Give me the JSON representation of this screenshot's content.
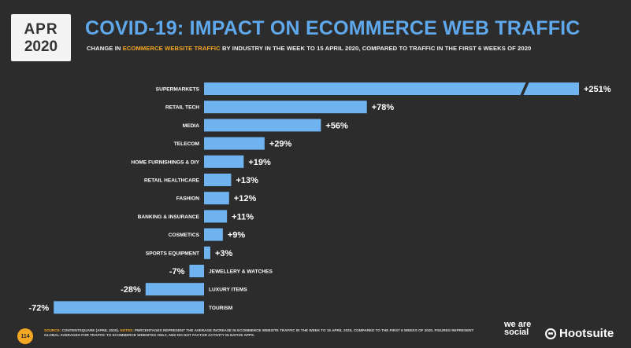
{
  "badge": {
    "month": "APR",
    "year": "2020"
  },
  "header": {
    "title": "COVID-19: IMPACT ON ECOMMERCE WEB TRAFFIC",
    "subtitle_pre": "CHANGE IN ",
    "subtitle_highlight": "ECOMMERCE WEBSITE TRAFFIC",
    "subtitle_post": " BY INDUSTRY IN THE WEEK TO 15 APRIL 2020, COMPARED TO TRAFFIC IN THE FIRST 6 WEEKS OF 2020"
  },
  "watermark": {
    "brand1": "we are social",
    "brand2": "Hootsuite"
  },
  "chart_data": {
    "type": "bar",
    "orientation": "horizontal",
    "categories": [
      "SUPERMARKETS",
      "RETAIL TECH",
      "MEDIA",
      "TELECOM",
      "HOME FURNISHINGS & DIY",
      "RETAIL HEALTHCARE",
      "FASHION",
      "BANKING & INSURANCE",
      "COSMETICS",
      "SPORTS EQUIPMENT",
      "JEWELLERY & WATCHES",
      "LUXURY ITEMS",
      "TOURISM"
    ],
    "values": [
      251,
      78,
      56,
      29,
      19,
      13,
      12,
      11,
      9,
      3,
      -7,
      -28,
      -72
    ],
    "value_labels": [
      "+251%",
      "+78%",
      "+56%",
      "+29%",
      "+19%",
      "+13%",
      "+12%",
      "+11%",
      "+9%",
      "+3%",
      "-7%",
      "-28%",
      "-72%"
    ],
    "axis_break": true,
    "colors": {
      "bar": "#6fb3f0",
      "label": "#ffffff",
      "highlight": "#f5a623"
    }
  },
  "footer": {
    "page_number": "114",
    "source_label": "SOURCE:",
    "source_text": " CONTENTSQUARE (APRIL 2020). ",
    "notes_label": "NOTES:",
    "notes_text": " PERCENTAGES REPRESENT THE AVERAGE INCREASE IN ECOMMERCE WEBSITE TRAFFIC IN THE WEEK TO 15 APRIL 2020, COMPARED TO THE FIRST 6 WEEKS OF 2020. FIGURES REPRESENT GLOBAL AVERAGES FOR TRAFFIC TO ECOMMERCE WEBSITES ONLY, AND DO NOT FACTOR ACTIVITY IN NATIVE APPS.",
    "logo1": "we are social",
    "logo2": "Hootsuite"
  }
}
